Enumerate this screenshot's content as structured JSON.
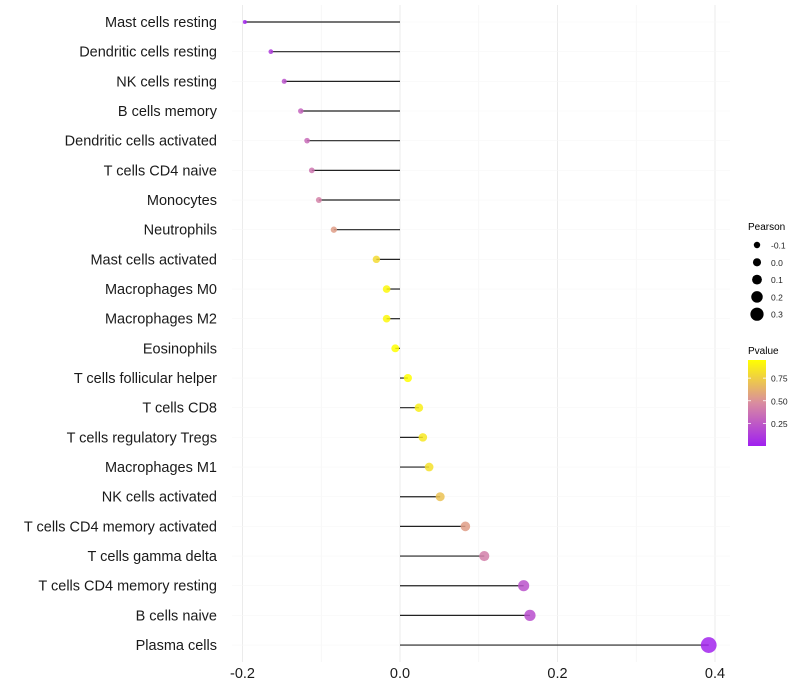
{
  "chart_data": {
    "type": "lollipop",
    "title": "",
    "xlabel": "",
    "ylabel": "",
    "xlim": [
      -0.215,
      0.5
    ],
    "xticks": [
      -0.2,
      0.0,
      0.2,
      0.4
    ],
    "xtick_labels": [
      "-0.2",
      "0.0",
      "0.2",
      "0.4"
    ],
    "grid": true,
    "categories": [
      "Mast cells resting",
      "Dendritic cells resting",
      "NK cells resting",
      "B cells memory",
      "Dendritic cells activated",
      "T cells CD4 naive",
      "Monocytes",
      "Neutrophils",
      "Mast cells activated",
      "Macrophages M0",
      "Macrophages M2",
      "Eosinophils",
      "T cells follicular helper",
      "T cells CD8",
      "T cells regulatory  Tregs",
      "Macrophages M1",
      "NK cells activated",
      "T cells CD4 memory activated",
      "T cells gamma delta",
      "T cells CD4 memory resting",
      "B cells naive",
      "Plasma cells"
    ],
    "pearson": [
      -0.197,
      -0.164,
      -0.147,
      -0.126,
      -0.118,
      -0.112,
      -0.103,
      -0.084,
      -0.03,
      -0.017,
      -0.017,
      -0.006,
      0.01,
      0.024,
      0.029,
      0.037,
      0.051,
      0.083,
      0.107,
      0.157,
      0.165,
      0.392
    ],
    "pvalue": [
      0.02,
      0.12,
      0.22,
      0.3,
      0.33,
      0.38,
      0.43,
      0.55,
      0.8,
      0.92,
      0.92,
      0.97,
      0.97,
      0.88,
      0.85,
      0.82,
      0.7,
      0.55,
      0.42,
      0.22,
      0.2,
      0.02
    ],
    "legend_size": {
      "title": "Pearson",
      "values": [
        -0.1,
        0.0,
        0.1,
        0.2,
        0.3
      ],
      "labels": [
        "-0.1",
        "0.0",
        "0.1",
        "0.2",
        "0.3"
      ]
    },
    "legend_color": {
      "title": "Pvalue",
      "labels": [
        "0.75",
        "0.50",
        "0.25"
      ],
      "values": [
        0.75,
        0.5,
        0.25
      ],
      "range": [
        0,
        0.95
      ],
      "colors": [
        "#a020f0",
        "#d98ca0",
        "#ffff00"
      ]
    },
    "legend_position": "right"
  }
}
